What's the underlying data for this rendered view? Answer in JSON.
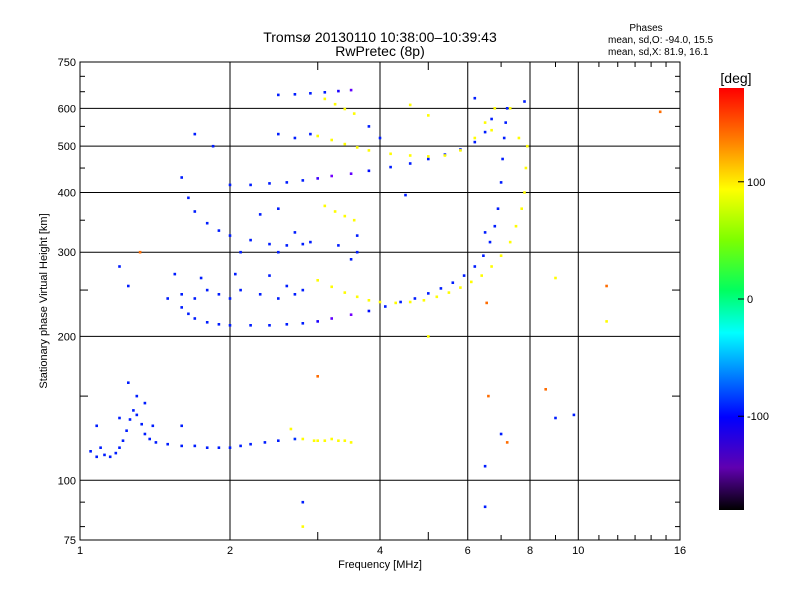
{
  "chart_data": {
    "type": "scatter",
    "title": "Tromsø 20130110 10:38:00–10:39:43",
    "subtitle": "RwPretec (8p)",
    "xlabel": "Frequency [MHz]",
    "ylabel": "Stationary phase Virtual Height [km]",
    "x_scale": "log",
    "y_scale": "log",
    "xlim": [
      1,
      16
    ],
    "ylim": [
      75,
      750
    ],
    "x_ticks": [
      1,
      2,
      4,
      6,
      8,
      10,
      16
    ],
    "y_ticks": [
      75,
      100,
      200,
      300,
      400,
      500,
      600,
      750
    ],
    "grid": true,
    "stats": {
      "heading": "Phases",
      "line_o": "mean, sd,O:  -94.0,  15.5",
      "line_x": "mean, sd,X:   81.9,  16.1"
    },
    "colorbar": {
      "label": "[deg]",
      "range": [
        -180,
        180
      ],
      "ticks": [
        100,
        0,
        -100
      ],
      "tick_labels": [
        "100",
        "0",
        "-100"
      ]
    },
    "series": [
      {
        "points": [
          [
            1.05,
            115,
            -95
          ],
          [
            1.08,
            112,
            -95
          ],
          [
            1.1,
            117,
            -95
          ],
          [
            1.12,
            113,
            -95
          ],
          [
            1.15,
            112,
            -95
          ],
          [
            1.18,
            114,
            -95
          ],
          [
            1.2,
            117,
            -95
          ],
          [
            1.22,
            121,
            -95
          ],
          [
            1.24,
            127,
            -95
          ],
          [
            1.26,
            134,
            -95
          ],
          [
            1.28,
            140,
            -95
          ],
          [
            1.3,
            137,
            -95
          ],
          [
            1.33,
            131,
            -95
          ],
          [
            1.35,
            125,
            -95
          ],
          [
            1.38,
            122,
            -95
          ],
          [
            1.42,
            120,
            -95
          ],
          [
            1.5,
            119,
            -95
          ],
          [
            1.6,
            118,
            -95
          ],
          [
            1.7,
            118,
            -95
          ],
          [
            1.8,
            117,
            -95
          ],
          [
            1.9,
            117,
            -95
          ],
          [
            2.0,
            117,
            -95
          ],
          [
            2.1,
            118,
            -95
          ],
          [
            2.2,
            119,
            -95
          ],
          [
            2.35,
            120,
            -95
          ],
          [
            2.5,
            121,
            -95
          ],
          [
            2.7,
            122,
            -90
          ]
        ]
      },
      {
        "points": [
          [
            2.95,
            121,
            110
          ],
          [
            3.0,
            121,
            110
          ],
          [
            3.1,
            121,
            110
          ],
          [
            3.2,
            122,
            110
          ],
          [
            3.3,
            121,
            110
          ],
          [
            3.4,
            121,
            110
          ],
          [
            3.5,
            120,
            110
          ]
        ]
      },
      {
        "points": [
          [
            1.6,
            230,
            -95
          ],
          [
            1.65,
            223,
            -95
          ],
          [
            1.7,
            218,
            -95
          ],
          [
            1.8,
            214,
            -95
          ],
          [
            1.9,
            212,
            -95
          ],
          [
            2.0,
            211,
            -95
          ],
          [
            2.2,
            211,
            -95
          ],
          [
            2.4,
            211,
            -95
          ],
          [
            2.6,
            212,
            -95
          ],
          [
            2.8,
            213,
            -95
          ],
          [
            3.0,
            215,
            -110
          ],
          [
            3.2,
            218,
            -130
          ],
          [
            3.5,
            222,
            -135
          ],
          [
            3.8,
            226,
            -100
          ],
          [
            4.1,
            231,
            -95
          ],
          [
            4.4,
            236,
            -95
          ],
          [
            4.7,
            240,
            -95
          ],
          [
            5.0,
            246,
            -95
          ],
          [
            5.3,
            252,
            -95
          ],
          [
            5.6,
            259,
            -95
          ],
          [
            5.9,
            268,
            -95
          ],
          [
            6.2,
            280,
            -95
          ],
          [
            6.45,
            295,
            -95
          ],
          [
            6.65,
            315,
            -95
          ],
          [
            6.8,
            340,
            -95
          ],
          [
            6.9,
            370,
            -95
          ],
          [
            7.0,
            420,
            -95
          ],
          [
            7.05,
            470,
            -95
          ],
          [
            7.1,
            520,
            -95
          ],
          [
            7.15,
            560,
            -95
          ],
          [
            7.2,
            600,
            -95
          ]
        ]
      },
      {
        "points": [
          [
            3.0,
            262,
            110
          ],
          [
            3.2,
            254,
            110
          ],
          [
            3.4,
            247,
            110
          ],
          [
            3.6,
            242,
            110
          ],
          [
            3.8,
            238,
            110
          ],
          [
            4.0,
            236,
            110
          ],
          [
            4.3,
            235,
            110
          ],
          [
            4.6,
            236,
            110
          ],
          [
            4.9,
            238,
            110
          ],
          [
            5.2,
            242,
            110
          ],
          [
            5.5,
            247,
            110
          ],
          [
            5.8,
            253,
            110
          ],
          [
            6.1,
            260,
            110
          ],
          [
            6.4,
            268,
            110
          ],
          [
            6.7,
            280,
            110
          ],
          [
            7.0,
            295,
            110
          ],
          [
            7.3,
            315,
            110
          ],
          [
            7.5,
            340,
            110
          ],
          [
            7.7,
            370,
            110
          ],
          [
            7.8,
            400,
            110
          ],
          [
            7.85,
            450,
            110
          ],
          [
            7.9,
            500,
            110
          ]
        ]
      },
      {
        "points": [
          [
            1.6,
            430,
            -95
          ],
          [
            1.65,
            390,
            -95
          ],
          [
            1.7,
            365,
            -95
          ],
          [
            1.8,
            345,
            -95
          ],
          [
            1.9,
            333,
            -95
          ],
          [
            2.0,
            325,
            -95
          ],
          [
            2.2,
            318,
            -95
          ],
          [
            2.4,
            312,
            -95
          ],
          [
            2.6,
            310,
            -95
          ],
          [
            2.8,
            312,
            -95
          ]
        ]
      },
      {
        "points": [
          [
            2.0,
            415,
            -95
          ],
          [
            2.2,
            415,
            -95
          ],
          [
            2.4,
            418,
            -95
          ],
          [
            2.6,
            420,
            -95
          ],
          [
            2.8,
            424,
            -95
          ],
          [
            3.0,
            428,
            -120
          ],
          [
            3.2,
            433,
            -135
          ],
          [
            3.5,
            438,
            -130
          ],
          [
            3.8,
            444,
            -100
          ],
          [
            4.2,
            452,
            -95
          ],
          [
            4.6,
            460,
            -95
          ],
          [
            5.0,
            470,
            -95
          ],
          [
            5.4,
            480,
            -95
          ],
          [
            5.8,
            492,
            -95
          ],
          [
            6.2,
            510,
            -95
          ],
          [
            6.5,
            535,
            -95
          ],
          [
            6.7,
            570,
            -95
          ]
        ]
      },
      {
        "points": [
          [
            3.0,
            525,
            110
          ],
          [
            3.2,
            515,
            110
          ],
          [
            3.4,
            505,
            110
          ],
          [
            3.6,
            497,
            110
          ],
          [
            3.8,
            490,
            110
          ],
          [
            4.2,
            482,
            110
          ],
          [
            4.6,
            478,
            110
          ],
          [
            5.0,
            476,
            110
          ],
          [
            5.4,
            478,
            110
          ],
          [
            5.8,
            490,
            110
          ],
          [
            6.2,
            520,
            110
          ],
          [
            6.5,
            560,
            110
          ],
          [
            6.8,
            600,
            110
          ]
        ]
      },
      {
        "points": [
          [
            2.5,
            640,
            -95
          ],
          [
            2.7,
            642,
            -95
          ],
          [
            2.9,
            645,
            -95
          ],
          [
            3.1,
            648,
            -95
          ],
          [
            3.3,
            652,
            -110
          ],
          [
            3.5,
            655,
            -130
          ]
        ]
      },
      {
        "points": [
          [
            3.1,
            628,
            110
          ],
          [
            3.25,
            612,
            110
          ],
          [
            3.4,
            598,
            110
          ],
          [
            3.55,
            585,
            110
          ]
        ]
      },
      {
        "points": [
          [
            3.1,
            375,
            110
          ],
          [
            3.25,
            365,
            110
          ],
          [
            3.4,
            357,
            110
          ],
          [
            3.55,
            350,
            110
          ]
        ]
      },
      {
        "points": [
          [
            1.5,
            240,
            -95
          ],
          [
            1.6,
            245,
            -95
          ],
          [
            1.7,
            240,
            -95
          ],
          [
            1.8,
            250,
            -95
          ],
          [
            1.9,
            245,
            -95
          ],
          [
            2.0,
            240,
            -95
          ],
          [
            2.1,
            250,
            -95
          ],
          [
            2.3,
            245,
            -95
          ],
          [
            2.5,
            240,
            -95
          ],
          [
            2.6,
            255,
            -95
          ],
          [
            2.7,
            245,
            -95
          ],
          [
            2.8,
            250,
            -95
          ],
          [
            1.55,
            270,
            -95
          ],
          [
            1.75,
            265,
            -95
          ],
          [
            2.05,
            270,
            -95
          ],
          [
            2.4,
            268,
            -95
          ],
          [
            1.25,
            255,
            -95
          ],
          [
            1.2,
            280,
            -95
          ],
          [
            2.1,
            300,
            -95
          ],
          [
            2.5,
            300,
            -95
          ],
          [
            2.7,
            330,
            -95
          ],
          [
            2.9,
            315,
            -95
          ],
          [
            3.3,
            310,
            -95
          ],
          [
            3.5,
            290,
            -95
          ],
          [
            3.6,
            300,
            -95
          ],
          [
            1.85,
            500,
            -95
          ],
          [
            1.7,
            530,
            -95
          ],
          [
            2.5,
            530,
            -95
          ],
          [
            2.7,
            520,
            -95
          ],
          [
            2.9,
            530,
            -95
          ],
          [
            3.8,
            550,
            -95
          ],
          [
            4.0,
            520,
            -95
          ],
          [
            2.5,
            370,
            -95
          ],
          [
            2.3,
            360,
            -95
          ],
          [
            1.25,
            160,
            -95
          ],
          [
            1.3,
            150,
            -95
          ],
          [
            1.35,
            145,
            -95
          ],
          [
            1.2,
            135,
            -95
          ],
          [
            1.4,
            130,
            -95
          ],
          [
            1.6,
            130,
            -95
          ]
        ]
      },
      {
        "points": [
          [
            2.65,
            128,
            110
          ],
          [
            2.8,
            122,
            110
          ],
          [
            4.6,
            610,
            110
          ],
          [
            5.0,
            580,
            110
          ],
          [
            6.7,
            540,
            110
          ],
          [
            7.3,
            600,
            110
          ],
          [
            7.6,
            520,
            110
          ]
        ]
      },
      {
        "points": [
          [
            1.08,
            130,
            -95
          ],
          [
            4.5,
            395,
            -95
          ],
          [
            6.5,
            330,
            -95
          ],
          [
            9.0,
            135,
            -95
          ],
          [
            9.8,
            137,
            -95
          ],
          [
            3.6,
            325,
            -95
          ],
          [
            2.8,
            90,
            -95
          ],
          [
            6.5,
            88,
            -95
          ],
          [
            6.5,
            107,
            -95
          ],
          [
            7.0,
            125,
            -95
          ]
        ]
      },
      {
        "points": [
          [
            1.32,
            300,
            150
          ],
          [
            3.0,
            165,
            150
          ],
          [
            6.55,
            235,
            150
          ],
          [
            6.6,
            150,
            150
          ],
          [
            8.6,
            155,
            150
          ],
          [
            11.4,
            255,
            150
          ],
          [
            14.6,
            590,
            150
          ],
          [
            7.2,
            120,
            150
          ],
          [
            11.4,
            215,
            110
          ],
          [
            9.0,
            265,
            110
          ],
          [
            2.8,
            80,
            110
          ],
          [
            5.0,
            200,
            110
          ],
          [
            6.2,
            630,
            -95
          ],
          [
            7.8,
            620,
            -95
          ]
        ]
      }
    ]
  }
}
